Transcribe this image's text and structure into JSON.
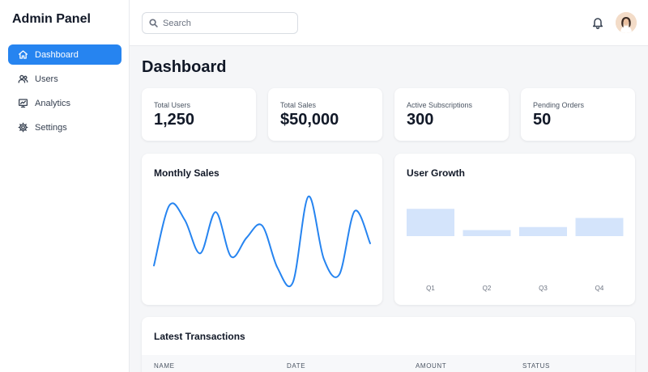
{
  "app": {
    "title": "Admin Panel"
  },
  "sidebar": {
    "items": [
      {
        "label": "Dashboard",
        "icon": "home-icon",
        "active": true
      },
      {
        "label": "Users",
        "icon": "users-icon",
        "active": false
      },
      {
        "label": "Analytics",
        "icon": "analytics-icon",
        "active": false
      },
      {
        "label": "Settings",
        "icon": "gear-icon",
        "active": false
      }
    ]
  },
  "topbar": {
    "search": {
      "placeholder": "Search",
      "value": ""
    },
    "notification_icon": "bell-icon",
    "avatar_icon": "user-avatar"
  },
  "page": {
    "title": "Dashboard"
  },
  "stats": [
    {
      "label": "Total Users",
      "value": "1,250"
    },
    {
      "label": "Total Sales",
      "value": "$50,000"
    },
    {
      "label": "Active Subscriptions",
      "value": "300"
    },
    {
      "label": "Pending Orders",
      "value": "50"
    }
  ],
  "charts": {
    "monthly_sales": {
      "title": "Monthly Sales"
    },
    "user_growth": {
      "title": "User Growth"
    }
  },
  "chart_data": [
    {
      "type": "line",
      "title": "Monthly Sales",
      "x": [
        0,
        1,
        2,
        3,
        4,
        5,
        6,
        7,
        8,
        9,
        10,
        11,
        12,
        13,
        14
      ],
      "values": [
        20,
        74,
        61,
        31,
        68,
        28,
        45,
        56,
        18,
        5,
        82,
        26,
        12,
        69,
        40
      ],
      "ylim": [
        0,
        90
      ],
      "color": "#2684f0",
      "grid": false
    },
    {
      "type": "bar",
      "title": "User Growth",
      "categories": [
        "Q1",
        "Q2",
        "Q3",
        "Q4"
      ],
      "values": [
        45,
        10,
        15,
        30
      ],
      "ylim": [
        0,
        100
      ],
      "color": "#d4e4fb",
      "grid": false
    }
  ],
  "transactions": {
    "title": "Latest Transactions",
    "columns": [
      "NAME",
      "DATE",
      "AMOUNT",
      "STATUS"
    ]
  },
  "colors": {
    "accent": "#2684f0",
    "bar": "#d4e4fb",
    "background": "#f5f6f8"
  }
}
